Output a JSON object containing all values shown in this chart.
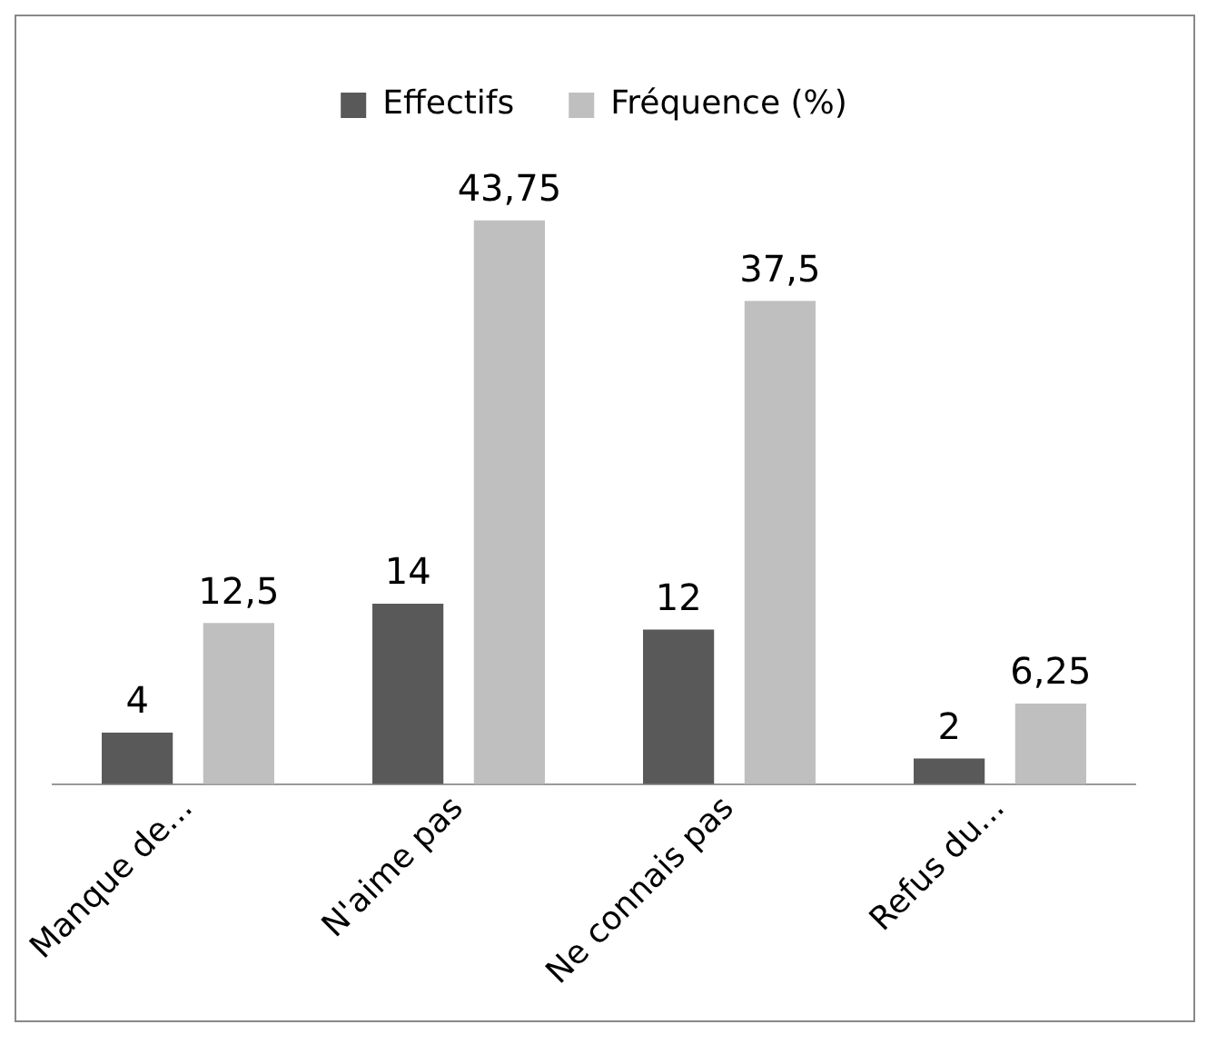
{
  "chart_data": {
    "type": "bar",
    "categories": [
      "Manque de...",
      "N'aime pas",
      "Ne connais pas",
      "Refus du..."
    ],
    "series": [
      {
        "name": "Effectifs",
        "color": "#595959",
        "values": [
          4,
          14,
          12,
          2
        ],
        "value_labels": [
          "4",
          "14",
          "12",
          "2"
        ]
      },
      {
        "name": "Fréquence (%)",
        "color": "#bfbfbf",
        "values": [
          12.5,
          43.75,
          37.5,
          6.25
        ],
        "value_labels": [
          "12,5",
          "43,75",
          "37,5",
          "6,25"
        ]
      }
    ],
    "legend": "top",
    "grid": false
  }
}
